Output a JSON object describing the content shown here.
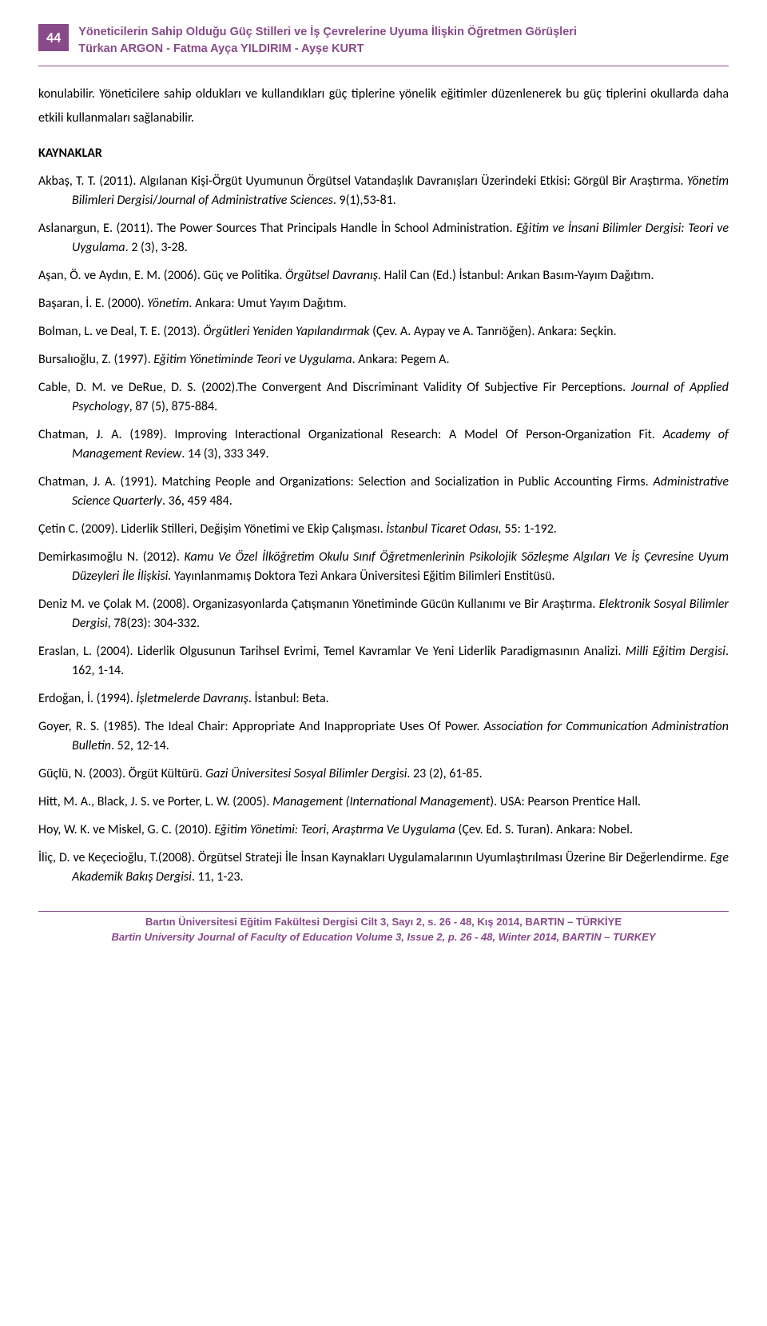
{
  "pageNumber": "44",
  "header": {
    "title": "Yöneticilerin Sahip Olduğu Güç Stilleri ve İş Çevrelerine Uyuma İlişkin Öğretmen Görüşleri",
    "authors": "Türkan ARGON - Fatma Ayça YILDIRIM - Ayşe KURT"
  },
  "introPara": "konulabilir. Yöneticilere sahip oldukları ve kullandıkları güç tiplerine yönelik eğitimler düzenlenerek bu güç tiplerini okullarda daha etkili kullanmaları sağlanabilir.",
  "kaynaklarHeading": "KAYNAKLAR",
  "refs": [
    {
      "plain": "Akbaş, T. T. (2011). Algılanan Kişi-Örgüt Uyumunun Örgütsel Vatandaşlık Davranışları Üzerindeki Etkisi: Görgül Bir Araştırma. ",
      "italic": "Yönetim Bilimleri Dergisi",
      "plain2": "/",
      "italic2": "Journal of Administrative Sciences",
      "plain3": ". 9(1),53-81."
    },
    {
      "plain": "Aslanargun, E. (2011). The Power Sources That Principals Handle İn School Administration. ",
      "italic": "Eğitim ve İnsani Bilimler Dergisi: Teori ve Uygulama",
      "plain2": ".  2 (3), 3-28."
    },
    {
      "plain": "Aşan, Ö. ve Aydın, E. M. (2006). Güç ve Politika. ",
      "italic": "Örgütsel Davranış",
      "plain2": ". Halil Can (Ed.) İstanbul: Arıkan Basım-Yayım Dağıtım."
    },
    {
      "plain": "Başaran, İ. E. (2000). ",
      "italic": "Yönetim",
      "plain2": ". Ankara: Umut Yayım Dağıtım."
    },
    {
      "plain": "Bolman, L. ve Deal, T. E. (2013). ",
      "italic": "Örgütleri Yeniden Yapılandırmak",
      "plain2": " (Çev. A. Aypay ve A. Tanrıöğen). Ankara: Seçkin."
    },
    {
      "plain": "Bursalıoğlu, Z. (1997). ",
      "italic": "Eğitim Yönetiminde Teori ve Uygulama",
      "plain2": ". Ankara: Pegem A."
    },
    {
      "plain": "Cable, D. M. ve DeRue, D. S. (2002).The Convergent And Discriminant Validity Of Subjective Fir Perceptions. ",
      "italic": "Journal of Applied Psychology",
      "plain2": ", 87 (5), 875-884."
    },
    {
      "plain": "Chatman, J. A. (1989). Improving Interactional Organizational Research: A Model Of Person-Organization Fit. ",
      "italic": "Academy of Management Review",
      "plain2": ". 14 (3), 333 349."
    },
    {
      "plain": "Chatman, J. A. (1991). Matching People and Organizations: Selection and Socialization in Public Accounting Firms. ",
      "italic": "Administrative Science Quarterly",
      "plain2": ". 36, 459 484."
    },
    {
      "plain": "Çetin C. (2009). Liderlik Stilleri, Değişim Yönetimi ve Ekip Çalışması. ",
      "italic": "İstanbul Ticaret Odası,",
      "plain2": " 55: 1-192."
    },
    {
      "plain": "Demirkasımoğlu N. (2012). ",
      "italic": "Kamu Ve Özel İlköğretim Okulu Sınıf Öğretmenlerinin Psikolojik Sözleşme Algıları Ve İş Çevresine Uyum Düzeyleri İle İlişkisi.",
      "plain2": " Yayınlanmamış Doktora Tezi Ankara Üniversitesi Eğitim Bilimleri Enstitüsü."
    },
    {
      "plain": "Deniz M. ve Çolak M. (2008). Organizasyonlarda Çatışmanın Yönetiminde Gücün Kullanımı ve Bir Araştırma. ",
      "italic": "Elektronik Sosyal Bilimler Dergisi",
      "plain2": ", 78(23): 304-332."
    },
    {
      "plain": "Eraslan, L. (2004). Liderlik Olgusunun Tarihsel Evrimi, Temel Kavramlar Ve Yeni Liderlik Paradigmasının Analizi. ",
      "italic": "Milli Eğitim Dergisi",
      "plain2": ". 162, 1-14."
    },
    {
      "plain": "Erdoğan, İ. (1994). ",
      "italic": "İşletmelerde Davranış",
      "plain2": ". İstanbul: Beta."
    },
    {
      "plain": "Goyer, R. S. (1985). The Ideal Chair: Appropriate And Inappropriate Uses Of Power. ",
      "italic": "Association for Communication Administration Bulletin",
      "plain2": ". 52, 12-14."
    },
    {
      "plain": "Güçlü, N. (2003). Örgüt Kültürü. ",
      "italic": "Gazi Üniversitesi Sosyal Bilimler Dergisi",
      "plain2": ". 23 (2), 61-85."
    },
    {
      "plain": "Hitt, M. A., Black, J. S. ve Porter, L. W. (2005). ",
      "italic": "Management (International Management",
      "plain2": "). USA: Pearson Prentice Hall."
    },
    {
      "plain": "Hoy, W. K. ve Miskel, G. C. (2010). ",
      "italic": "Eğitim Yönetimi: Teori, Araştırma Ve Uygulama",
      "plain2": " (Çev. Ed. S. Turan). Ankara: Nobel."
    },
    {
      "plain": "İliç, D. ve Keçecioğlu, T.(2008). Örgütsel Strateji İle İnsan Kaynakları Uygulamalarının Uyumlaştırılması Üzerine Bir Değerlendirme. ",
      "italic": "Ege Akademik Bakış Dergisi",
      "plain2": ". 11, 1-23."
    }
  ],
  "footer": {
    "line1": "Bartın Üniversitesi Eğitim Fakültesi Dergisi Cilt 3, Sayı 2, s.  26  - 48, Kış 2014, BARTIN – TÜRKİYE",
    "line2": "Bartin University Journal of Faculty of Education Volume 3, Issue 2, p.  26  - 48, Winter 2014, BARTIN – TURKEY"
  }
}
